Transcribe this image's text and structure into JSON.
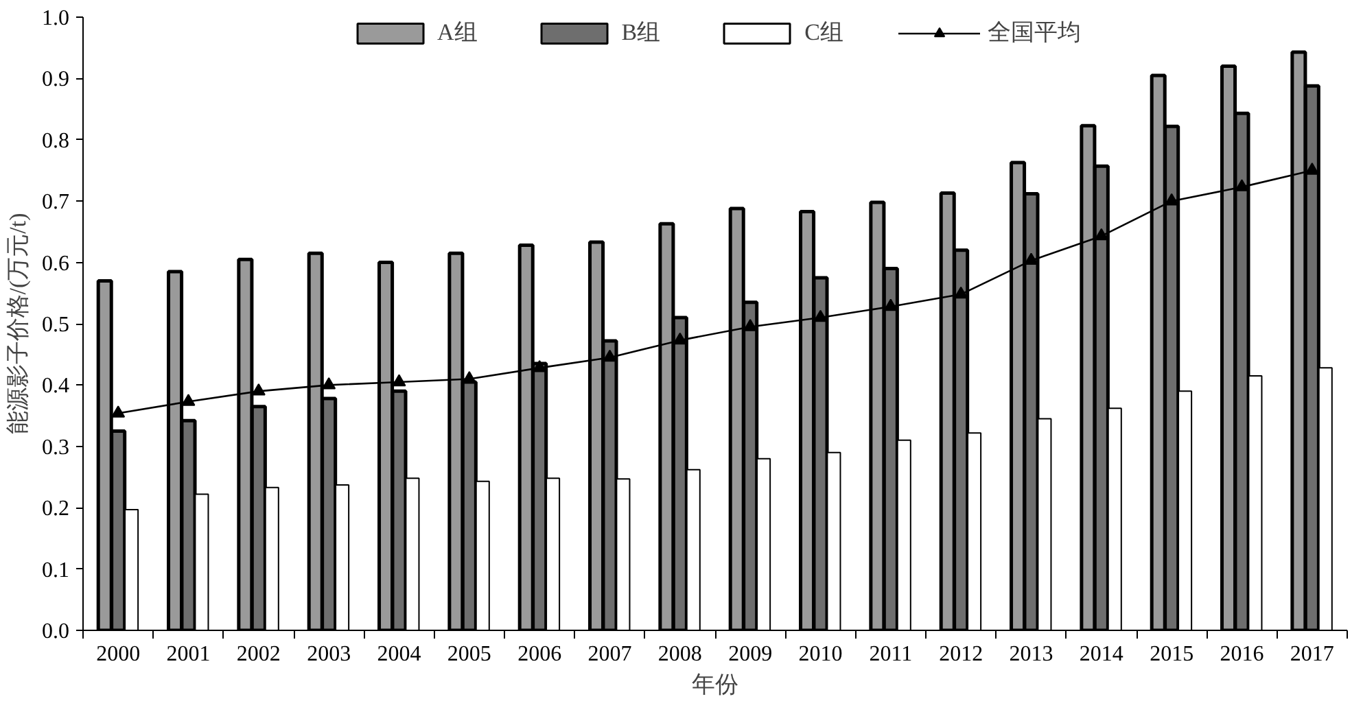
{
  "chart_data": {
    "type": "bar",
    "xlabel": "年份",
    "ylabel": "能源影子价格/(万元/t)",
    "categories": [
      "2000",
      "2001",
      "2002",
      "2003",
      "2004",
      "2005",
      "2006",
      "2007",
      "2008",
      "2009",
      "2010",
      "2011",
      "2012",
      "2013",
      "2014",
      "2015",
      "2016",
      "2017"
    ],
    "series": [
      {
        "name": "A组",
        "color": "#9a9a9a",
        "values": [
          0.57,
          0.585,
          0.605,
          0.615,
          0.6,
          0.615,
          0.628,
          0.633,
          0.663,
          0.688,
          0.683,
          0.698,
          0.713,
          0.763,
          0.823,
          0.905,
          0.92,
          0.943
        ]
      },
      {
        "name": "B组",
        "color": "#6e6e6e",
        "values": [
          0.325,
          0.342,
          0.365,
          0.378,
          0.39,
          0.405,
          0.435,
          0.472,
          0.51,
          0.535,
          0.575,
          0.59,
          0.62,
          0.712,
          0.757,
          0.822,
          0.843,
          0.888
        ]
      },
      {
        "name": "C组",
        "color": "#ffffff",
        "values": [
          0.197,
          0.222,
          0.233,
          0.237,
          0.248,
          0.243,
          0.248,
          0.247,
          0.262,
          0.28,
          0.29,
          0.31,
          0.322,
          0.345,
          0.362,
          0.39,
          0.415,
          0.428
        ]
      },
      {
        "name": "全国平均",
        "type": "line",
        "color": "#000000",
        "marker": "triangle",
        "values": [
          0.354,
          0.373,
          0.39,
          0.4,
          0.405,
          0.41,
          0.428,
          0.445,
          0.473,
          0.495,
          0.51,
          0.528,
          0.548,
          0.603,
          0.643,
          0.7,
          0.723,
          0.75
        ]
      }
    ],
    "ylim": [
      0,
      1.0
    ],
    "yticks": [
      {
        "value": 0,
        "label": "0.0"
      },
      {
        "value": 0.1,
        "label": "0.1"
      },
      {
        "value": 0.2,
        "label": "0.2"
      },
      {
        "value": 0.3,
        "label": "0.3"
      },
      {
        "value": 0.4,
        "label": "0.4"
      },
      {
        "value": 0.5,
        "label": "0.5"
      },
      {
        "value": 0.6,
        "label": "0.6"
      },
      {
        "value": 0.7,
        "label": "0.7"
      },
      {
        "value": 0.8,
        "label": "0.8"
      },
      {
        "value": 0.9,
        "label": "0.9"
      },
      {
        "value": 1.0,
        "label": "1.0"
      }
    ],
    "grid": false,
    "legend": "top",
    "line_style": "solid"
  }
}
